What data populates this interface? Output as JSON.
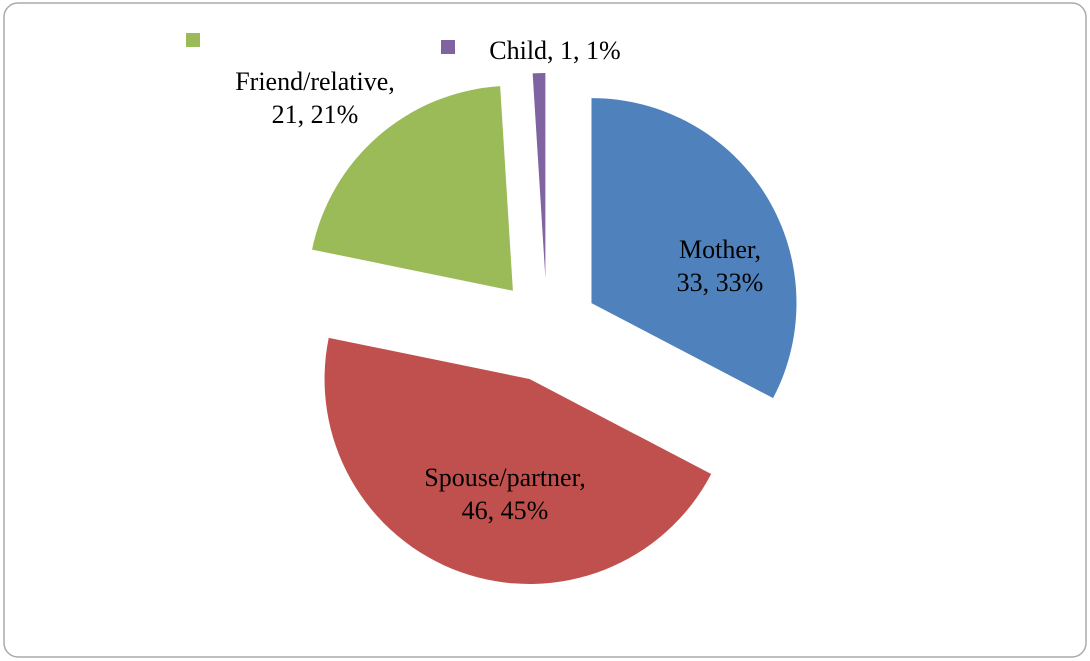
{
  "chart_data": {
    "type": "pie",
    "values": [
      33,
      46,
      21,
      1
    ],
    "value_labels": [
      [
        "Mother,",
        "33, 33%"
      ],
      [
        "Spouse/partner,",
        "46, 45%"
      ],
      [
        "Friend/relative,",
        "21, 21%"
      ],
      [
        "Child, 1, 1%"
      ]
    ],
    "colors": [
      "#4f81bd",
      "#c0504d",
      "#9bbb59",
      "#8064a2"
    ]
  }
}
